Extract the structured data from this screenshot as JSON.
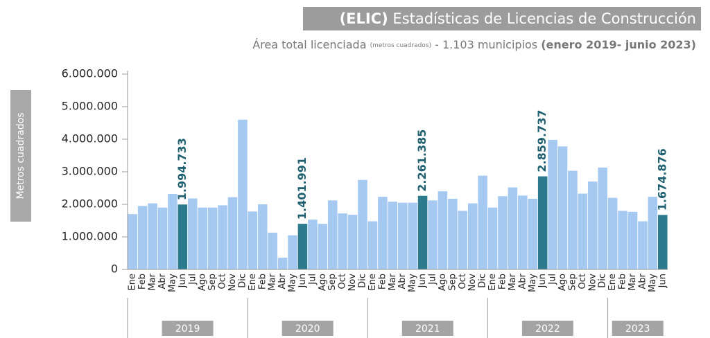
{
  "chart_data": {
    "type": "bar",
    "title_prefix": "(ELIC)",
    "title": "Estadísticas de Licencias de Construcción",
    "subtitle_main": "Área total licenciada",
    "subtitle_small": "(metros cuadrados)",
    "subtitle_mid": "- 1.103 municipios",
    "subtitle_bold": "(enero 2019- junio 2023)",
    "ylabel": "Metros cuadrados",
    "categories": [
      "Ene",
      "Feb",
      "Mar",
      "Abr",
      "May",
      "Jun",
      "Jul",
      "Ago",
      "Sep",
      "Oct",
      "Nov",
      "Dic",
      "Ene",
      "Feb",
      "Mar",
      "Abr",
      "May",
      "Jun",
      "Jul",
      "Ago",
      "Sep",
      "Oct",
      "Nov",
      "Dic",
      "Ene",
      "Feb",
      "Mar",
      "Abr",
      "May",
      "Jun",
      "Jul",
      "Ago",
      "Sep",
      "Oct",
      "Nov",
      "Dic",
      "Ene",
      "Feb",
      "Mar",
      "Abr",
      "May",
      "Jun",
      "Jul",
      "Ago",
      "Sep",
      "Oct",
      "Nov",
      "Dic",
      "Ene",
      "Feb",
      "Mar",
      "Abr",
      "May",
      "Jun"
    ],
    "years": [
      "2019",
      "2020",
      "2021",
      "2022",
      "2023"
    ],
    "values": [
      1700000,
      1950000,
      2030000,
      1900000,
      2320000,
      1994733,
      2180000,
      1900000,
      1900000,
      1970000,
      2220000,
      4600000,
      1780000,
      2000000,
      1130000,
      360000,
      1050000,
      1401991,
      1530000,
      1400000,
      2120000,
      1720000,
      1680000,
      2750000,
      1480000,
      2230000,
      2080000,
      2050000,
      2050000,
      2261385,
      2120000,
      2400000,
      2170000,
      1800000,
      2030000,
      2880000,
      1900000,
      2250000,
      2520000,
      2270000,
      2170000,
      2859737,
      3980000,
      3780000,
      3030000,
      2330000,
      2700000,
      3130000,
      2200000,
      1800000,
      1770000,
      1480000,
      2230000,
      1674876
    ],
    "value_labels": [
      null,
      null,
      null,
      null,
      null,
      "1.994.733",
      null,
      null,
      null,
      null,
      null,
      null,
      null,
      null,
      null,
      null,
      null,
      "1.401.991",
      null,
      null,
      null,
      null,
      null,
      null,
      null,
      null,
      null,
      null,
      null,
      "2.261.385",
      null,
      null,
      null,
      null,
      null,
      null,
      null,
      null,
      null,
      null,
      null,
      "2.859.737",
      null,
      null,
      null,
      null,
      null,
      null,
      null,
      null,
      null,
      null,
      null,
      "1.674.876"
    ],
    "color": "#a6c9f2",
    "highlight_color": "#2b7b8c",
    "ylim": [
      0,
      6000000
    ],
    "yticks": [
      0,
      {
        "value": 1000000,
        "label": "1.000.000"
      },
      {
        "value": 2000000,
        "label": "2.000.000"
      },
      {
        "value": 3000000,
        "label": "3.000.000"
      },
      {
        "value": 4000000,
        "label": "4.000.000"
      },
      {
        "value": 5000000,
        "label": "5.000.000"
      },
      {
        "value": 6000000,
        "label": "6.000.000"
      }
    ]
  }
}
